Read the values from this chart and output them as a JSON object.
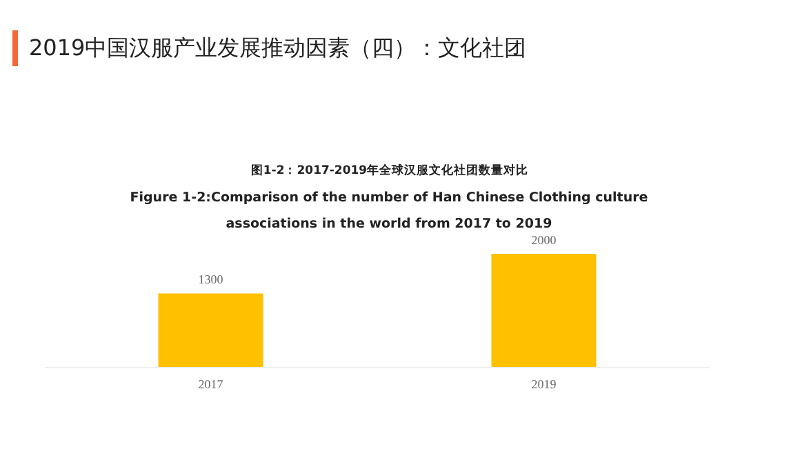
{
  "chart_data": {
    "type": "bar",
    "title": "2019中国汉服产业发展推动因素（四）：文化社团",
    "subtitle": "图1-2：2017-2019年全球汉服文化社团数量对比",
    "annotations": [
      "Figure 1-2:Comparison of the number of Han Chinese Clothing culture associations in the world from 2017 to 2019"
    ],
    "categories": [
      "2017",
      "2019"
    ],
    "values": [
      1300,
      2000
    ],
    "color": "#ffc000",
    "data_labels": true,
    "tick_labels": "x"
  }
}
